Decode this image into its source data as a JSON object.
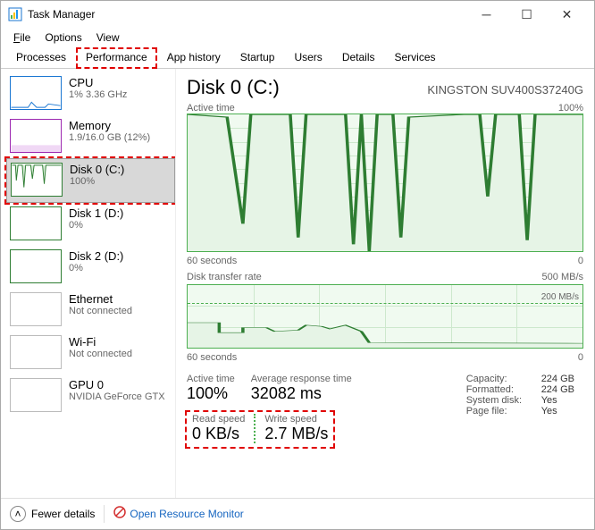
{
  "window": {
    "title": "Task Manager"
  },
  "menu": {
    "file": "File",
    "options": "Options",
    "view": "View"
  },
  "tabs": [
    "Processes",
    "Performance",
    "App history",
    "Startup",
    "Users",
    "Details",
    "Services"
  ],
  "active_tab_index": 1,
  "highlight_tab_index": 1,
  "sidebar": [
    {
      "name": "CPU",
      "sub": "1% 3.36 GHz",
      "style": "cpu",
      "selected": false
    },
    {
      "name": "Memory",
      "sub": "1.9/16.0 GB (12%)",
      "style": "mem",
      "selected": false
    },
    {
      "name": "Disk 0 (C:)",
      "sub": "100%",
      "style": "disk",
      "selected": true,
      "hl": true
    },
    {
      "name": "Disk 1 (D:)",
      "sub": "0%",
      "style": "disk",
      "selected": false
    },
    {
      "name": "Disk 2 (D:)",
      "sub": "0%",
      "style": "disk",
      "selected": false
    },
    {
      "name": "Ethernet",
      "sub": "Not connected",
      "style": "gray",
      "selected": false
    },
    {
      "name": "Wi-Fi",
      "sub": "Not connected",
      "style": "gray",
      "selected": false
    },
    {
      "name": "GPU 0",
      "sub": "NVIDIA GeForce GTX",
      "style": "gray",
      "selected": false
    }
  ],
  "detail": {
    "title": "Disk 0 (C:)",
    "model": "KINGSTON SUV400S37240G",
    "chart1_label": "Active time",
    "chart1_max": "100%",
    "chart1_x_left": "60 seconds",
    "chart1_x_right": "0",
    "chart2_label": "Disk transfer rate",
    "chart2_max": "500 MB/s",
    "chart2_ref": "200 MB/s",
    "chart2_x_left": "60 seconds",
    "chart2_x_right": "0",
    "stats": {
      "active_time": {
        "lbl": "Active time",
        "val": "100%"
      },
      "avg_resp": {
        "lbl": "Average response time",
        "val": "32082 ms"
      },
      "read": {
        "lbl": "Read speed",
        "val": "0 KB/s"
      },
      "write": {
        "lbl": "Write speed",
        "val": "2.7 MB/s"
      }
    },
    "kv": {
      "capacity": {
        "k": "Capacity:",
        "v": "224 GB"
      },
      "formatted": {
        "k": "Formatted:",
        "v": "224 GB"
      },
      "sysdisk": {
        "k": "System disk:",
        "v": "Yes"
      },
      "pagefile": {
        "k": "Page file:",
        "v": "Yes"
      }
    }
  },
  "footer": {
    "fewer": "Fewer details",
    "open_rm": "Open Resource Monitor"
  },
  "colors": {
    "accent_green": "#4caf50",
    "chart_fill": "#e6f4e6",
    "chart_line": "#2e7d32",
    "hl_red": "#e00000"
  },
  "chart_active_time": {
    "type": "area",
    "ylim": [
      0,
      100
    ],
    "points": [
      [
        0,
        100
      ],
      [
        10,
        98
      ],
      [
        14,
        20
      ],
      [
        16,
        100
      ],
      [
        26,
        100
      ],
      [
        28,
        10
      ],
      [
        30,
        100
      ],
      [
        40,
        100
      ],
      [
        42,
        5
      ],
      [
        44,
        100
      ],
      [
        46,
        0
      ],
      [
        48,
        100
      ],
      [
        52,
        100
      ],
      [
        54,
        10
      ],
      [
        56,
        98
      ],
      [
        70,
        100
      ],
      [
        74,
        100
      ],
      [
        76,
        40
      ],
      [
        78,
        100
      ],
      [
        84,
        100
      ],
      [
        86,
        8
      ],
      [
        88,
        100
      ],
      [
        100,
        100
      ]
    ]
  },
  "chart_transfer": {
    "type": "area",
    "ylim": [
      0,
      500
    ],
    "ref": 200,
    "points": [
      [
        0,
        200
      ],
      [
        8,
        200
      ],
      [
        8,
        120
      ],
      [
        14,
        120
      ],
      [
        14,
        160
      ],
      [
        20,
        160
      ],
      [
        22,
        130
      ],
      [
        28,
        140
      ],
      [
        30,
        180
      ],
      [
        34,
        170
      ],
      [
        36,
        150
      ],
      [
        40,
        180
      ],
      [
        44,
        130
      ],
      [
        46,
        40
      ],
      [
        100,
        35
      ]
    ]
  }
}
